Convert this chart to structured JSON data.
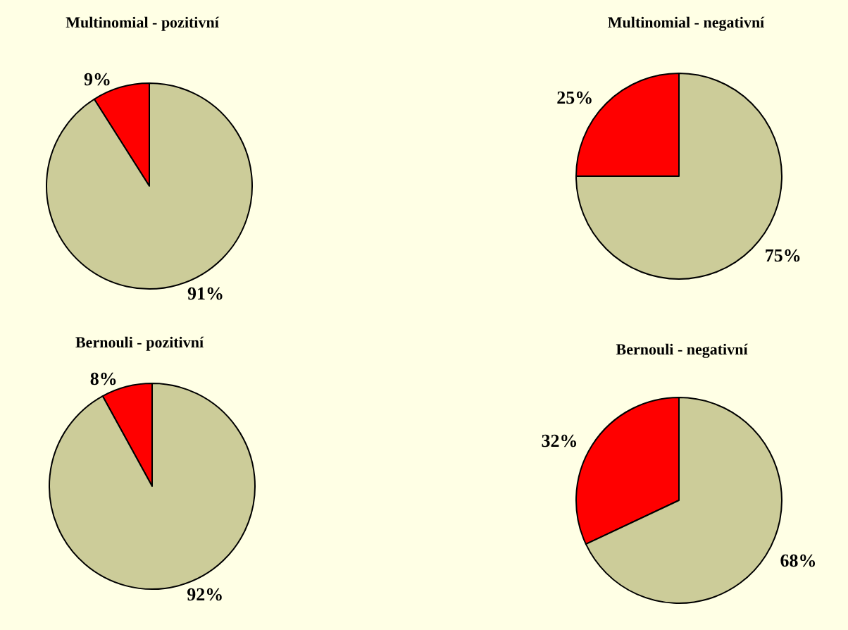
{
  "chart_data": [
    {
      "type": "pie",
      "title": "Multinomial - pozitivní",
      "categories": [
        null,
        null
      ],
      "values": [
        9,
        91
      ],
      "colors": [
        "#ff0000",
        "#cccc99"
      ],
      "value_labels": [
        "9%",
        "91%"
      ]
    },
    {
      "type": "pie",
      "title": "Multinomial - negativní",
      "categories": [
        null,
        null
      ],
      "values": [
        25,
        75
      ],
      "colors": [
        "#ff0000",
        "#cccc99"
      ],
      "value_labels": [
        "25%",
        "75%"
      ]
    },
    {
      "type": "pie",
      "title": "Bernouli - pozitivní",
      "categories": [
        null,
        null
      ],
      "values": [
        8,
        92
      ],
      "colors": [
        "#ff0000",
        "#cccc99"
      ],
      "value_labels": [
        "8%",
        "92%"
      ]
    },
    {
      "type": "pie",
      "title": "Bernouli - negativní",
      "categories": [
        null,
        null
      ],
      "values": [
        32,
        68
      ],
      "colors": [
        "#ff0000",
        "#cccc99"
      ],
      "value_labels": [
        "32%",
        "68%"
      ]
    }
  ]
}
